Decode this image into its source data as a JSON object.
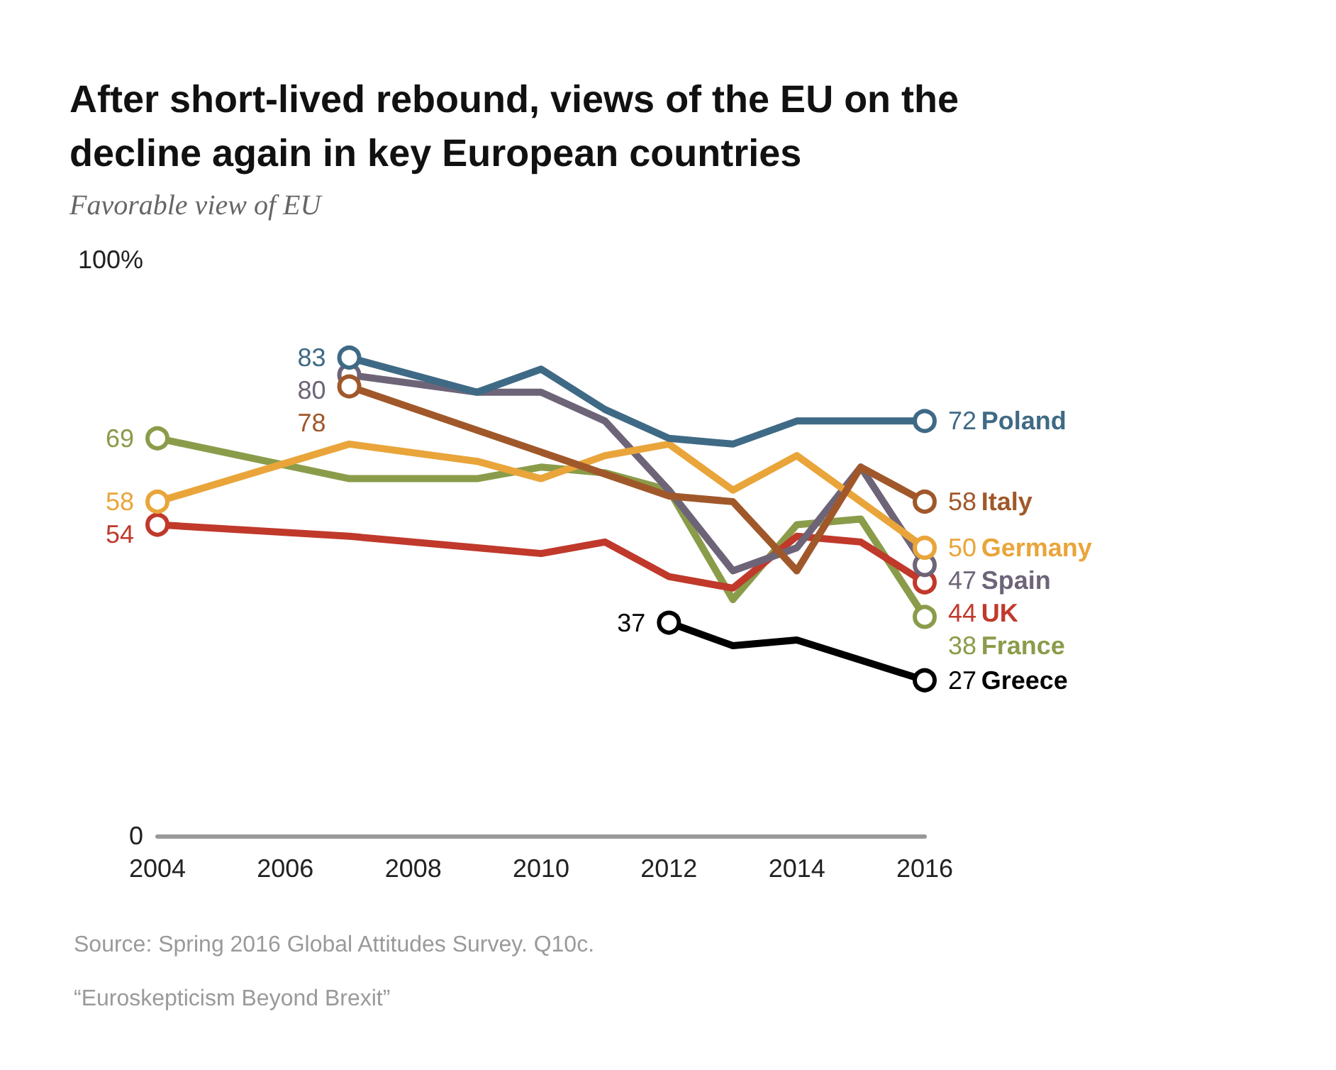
{
  "chart_data": {
    "type": "line",
    "title": "After short-lived rebound, views of the EU on the decline again in key European countries",
    "subtitle": "Favorable view of EU",
    "xlim": [
      2004,
      2016
    ],
    "xticks": [
      2004,
      2006,
      2008,
      2010,
      2012,
      2014,
      2016
    ],
    "ylim": [
      0,
      100
    ],
    "yticks": [
      0,
      {
        "value": 100,
        "label": "100%"
      }
    ],
    "line_style": "solid",
    "legend": false,
    "series": [
      {
        "name": "Poland",
        "color": "#3f6a85",
        "x": [
          2007,
          2009,
          2010,
          2011,
          2012,
          2013,
          2014,
          2015,
          2016
        ],
        "values": [
          83,
          77,
          81,
          74,
          69,
          68,
          72,
          72,
          72
        ],
        "value_labels": [
          "83",
          null,
          null,
          null,
          null,
          null,
          null,
          null,
          "72"
        ]
      },
      {
        "name": "Italy",
        "color": "#a0582a",
        "x": [
          2007,
          2012,
          2013,
          2014,
          2015,
          2016
        ],
        "values": [
          78,
          59,
          58,
          46,
          64,
          58
        ],
        "value_labels": [
          "78",
          null,
          null,
          null,
          null,
          "58"
        ]
      },
      {
        "name": "Germany",
        "color": "#e9a53a",
        "x": [
          2004,
          2007,
          2009,
          2010,
          2011,
          2012,
          2013,
          2014,
          2015,
          2016
        ],
        "values": [
          58,
          68,
          65,
          62,
          66,
          68,
          60,
          66,
          58,
          50
        ],
        "value_labels": [
          "58",
          null,
          null,
          null,
          null,
          null,
          null,
          null,
          null,
          "50"
        ]
      },
      {
        "name": "Spain",
        "color": "#6e6478",
        "x": [
          2007,
          2009,
          2010,
          2011,
          2012,
          2013,
          2014,
          2015,
          2016
        ],
        "values": [
          80,
          77,
          77,
          72,
          60,
          46,
          50,
          64,
          47
        ],
        "value_labels": [
          "80",
          null,
          null,
          null,
          null,
          null,
          null,
          null,
          "47"
        ]
      },
      {
        "name": "UK",
        "color": "#c0392b",
        "x": [
          2004,
          2007,
          2009,
          2010,
          2011,
          2012,
          2013,
          2014,
          2015,
          2016
        ],
        "values": [
          54,
          52,
          50,
          49,
          51,
          45,
          43,
          52,
          51,
          44
        ],
        "value_labels": [
          "54",
          null,
          null,
          null,
          null,
          null,
          null,
          null,
          null,
          "44"
        ]
      },
      {
        "name": "France",
        "color": "#8a9c4a",
        "x": [
          2004,
          2007,
          2009,
          2010,
          2011,
          2012,
          2013,
          2014,
          2015,
          2016
        ],
        "values": [
          69,
          62,
          62,
          64,
          63,
          60,
          41,
          54,
          55,
          38
        ],
        "value_labels": [
          "69",
          null,
          null,
          null,
          null,
          null,
          null,
          null,
          null,
          "38"
        ]
      },
      {
        "name": "Greece",
        "color": "#000000",
        "x": [
          2012,
          2013,
          2014,
          2016
        ],
        "values": [
          37,
          33,
          34,
          27
        ],
        "value_labels": [
          "37",
          null,
          null,
          "27"
        ]
      }
    ],
    "annotations": [
      "Source: Spring 2016 Global Attitudes Survey. Q10c.",
      "“Euroskepticism Beyond Brexit”"
    ]
  }
}
